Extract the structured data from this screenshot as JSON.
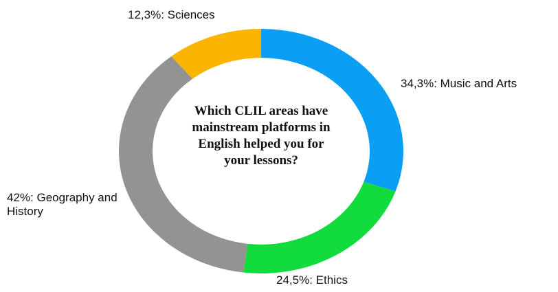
{
  "chart_data": {
    "type": "donut",
    "title": "Which CLIL areas have mainstream platforms in English helped you for your lessons?",
    "values": [
      34.3,
      24.5,
      42,
      12.3
    ],
    "value_labels": [
      "34,3%: Music and Arts",
      "24,5%: Ethics",
      "42%: Geography and History",
      "12,3%: Sciences"
    ],
    "colors": [
      "#0a9ff5",
      "#12db3e",
      "#939393",
      "#fbb400"
    ]
  }
}
